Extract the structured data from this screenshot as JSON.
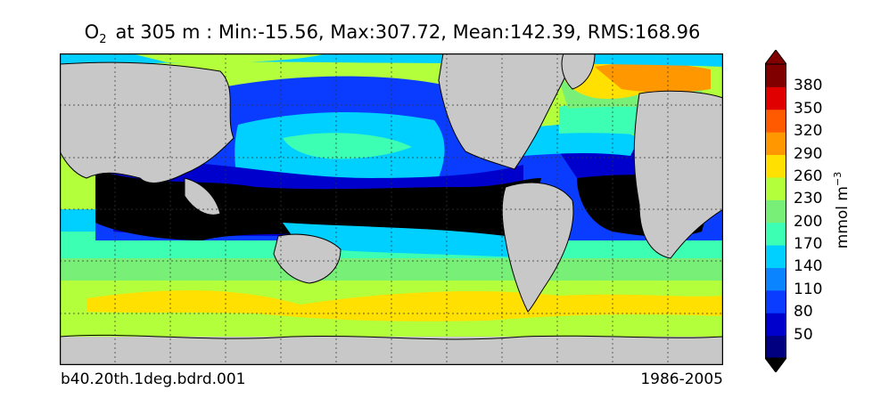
{
  "title": {
    "species_main": "O",
    "species_sub": "2",
    "text": "at 305 m : Min:-15.56, Max:307.72, Mean:142.39, RMS:168.96"
  },
  "case_name": "b40.20th.1deg.bdrd.001",
  "years": "1986-2005",
  "colorbar": {
    "unit_prefix": "mmol m",
    "unit_exp": "−3",
    "ticks": [
      "50",
      "80",
      "110",
      "140",
      "170",
      "200",
      "230",
      "260",
      "290",
      "320",
      "350",
      "380"
    ],
    "colors": [
      "#000080",
      "#0000cd",
      "#0a3cff",
      "#0a84ff",
      "#00d0ff",
      "#3cffb4",
      "#78f078",
      "#b4ff3c",
      "#ffe000",
      "#ff9800",
      "#ff5a00",
      "#e00000",
      "#800000"
    ],
    "extend": "both"
  },
  "map": {
    "land_color": "#c8c8c8",
    "missing_color": "#ffffff",
    "anoxic_color": "#000000",
    "grid": true
  }
}
